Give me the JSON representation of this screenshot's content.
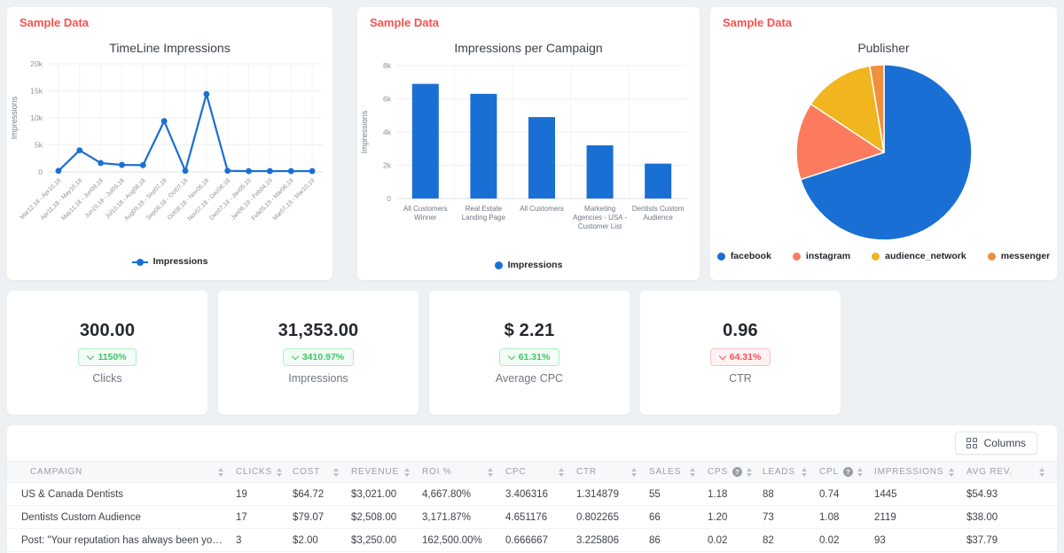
{
  "chart_data": [
    {
      "id": "timeline",
      "type": "line",
      "sample_label": "Sample Data",
      "title": "TimeLine Impressions",
      "ylabel": "Impressions",
      "legend": "Impressions",
      "color": "#1a6fd4",
      "ylim": [
        0,
        20000
      ],
      "yticks": [
        0,
        5000,
        10000,
        15000,
        20000
      ],
      "ytick_labels": [
        "0",
        "5k",
        "10k",
        "15k",
        "20k"
      ],
      "categories": [
        "Mar12,18 - Apr10,18",
        "Apr11,18 - May10,18",
        "May11,18 - Jun09,18",
        "Jun10,18 - Jul09,18",
        "Jul10,18 - Aug08,18",
        "Aug09,18 - Sep07,18",
        "Sep08,18 - Oct07,18",
        "Oct08,18 - Nov06,18",
        "Nov07,18 - Dec06,18",
        "Dec07,18 - Jan05,19",
        "Jan06,19 - Feb04,19",
        "Feb05,19 - Mar06,19",
        "Mar07,19 - Mar10,19"
      ],
      "values": [
        200,
        4000,
        1650,
        1300,
        1250,
        9400,
        200,
        14400,
        200,
        150,
        150,
        150,
        150
      ],
      "grid": true,
      "legend_position": "bottom"
    },
    {
      "id": "campaign",
      "type": "bar",
      "sample_label": "Sample Data",
      "title": "Impressions per Campaign",
      "ylabel": "Impressions",
      "legend": "Impressions",
      "color": "#1a6fd4",
      "ylim": [
        0,
        8000
      ],
      "yticks": [
        0,
        2000,
        4000,
        6000,
        8000
      ],
      "ytick_labels": [
        "0",
        "2k",
        "4k",
        "6k",
        "8k"
      ],
      "categories": [
        "All Customers Winner",
        "Real Estate Landing Page",
        "All Customers",
        "Marketing Agencies - USA - Customer List",
        "Dentists Custom Audience"
      ],
      "category_lines": [
        [
          "All Customers",
          "Winner"
        ],
        [
          "Real Estate",
          "Landing Page"
        ],
        [
          "All Customers"
        ],
        [
          "Marketing",
          "Agencies - USA -",
          "Customer List"
        ],
        [
          "Dentists Custom",
          "Audience"
        ]
      ],
      "values": [
        6900,
        6300,
        4900,
        3200,
        2100
      ],
      "grid": true,
      "legend_position": "bottom"
    },
    {
      "id": "publisher",
      "type": "pie",
      "sample_label": "Sample Data",
      "title": "Publisher",
      "labels": [
        "facebook",
        "instagram",
        "audience_network",
        "messenger"
      ],
      "values": [
        70,
        14.3,
        13.1,
        2.6
      ],
      "colors": [
        "#1a6fd4",
        "#fc7b5e",
        "#f1b51f",
        "#ee9040"
      ],
      "unit": "percent-share",
      "legend_position": "bottom"
    }
  ],
  "kpis": [
    {
      "value": "300.00",
      "delta": "1150%",
      "trend": "down",
      "tone": "positive",
      "label": "Clicks"
    },
    {
      "value": "31,353.00",
      "delta": "3410.97%",
      "trend": "down",
      "tone": "positive",
      "label": "Impressions"
    },
    {
      "value": "$ 2.21",
      "delta": "61.31%",
      "trend": "down",
      "tone": "positive",
      "label": "Average CPC"
    },
    {
      "value": "0.96",
      "delta": "64.31%",
      "trend": "down",
      "tone": "negative",
      "label": "CTR"
    }
  ],
  "table": {
    "columns_button_label": "Columns",
    "columns": [
      {
        "label": "CAMPAIGN"
      },
      {
        "label": "CLICKS"
      },
      {
        "label": "COST"
      },
      {
        "label": "REVENUE"
      },
      {
        "label": "ROI %"
      },
      {
        "label": "CPC"
      },
      {
        "label": "CTR"
      },
      {
        "label": "SALES"
      },
      {
        "label": "CPS",
        "info": true
      },
      {
        "label": "LEADS"
      },
      {
        "label": "CPL",
        "info": true
      },
      {
        "label": "IMPRESSIONS"
      },
      {
        "label": "AVG REV."
      }
    ],
    "rows": [
      [
        "US & Canada Dentists",
        "19",
        "$64.72",
        "$3,021.00",
        "4,667.80%",
        "3.406316",
        "1.314879",
        "55",
        "1.18",
        "88",
        "0.74",
        "1445",
        "$54.93"
      ],
      [
        "Dentists Custom Audience",
        "17",
        "$79.07",
        "$2,508.00",
        "3,171.87%",
        "4.651176",
        "0.802265",
        "66",
        "1.20",
        "73",
        "1.08",
        "2119",
        "$38.00"
      ],
      [
        "Post: \"Your reputation has always been your most...\"",
        "3",
        "$2.00",
        "$3,250.00",
        "162,500.00%",
        "0.666667",
        "3.225806",
        "86",
        "0.02",
        "82",
        "0.02",
        "93",
        "$37.79"
      ]
    ]
  }
}
